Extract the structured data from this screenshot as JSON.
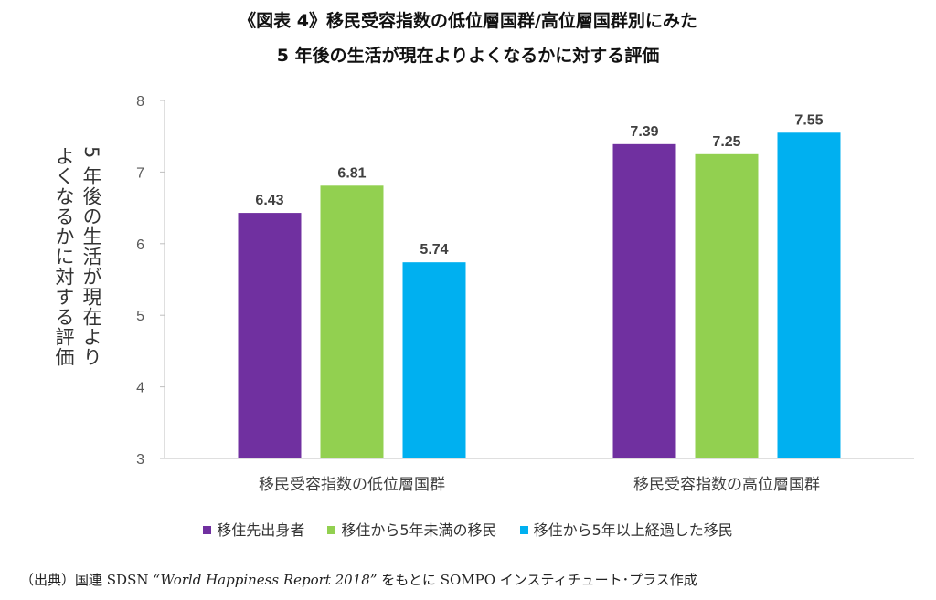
{
  "title_line1": "《図表 4》移民受容指数の低位層国群/高位層国群別にみた",
  "title_line2": "5 年後の生活が現在よりよくなるかに対する評価",
  "ylabel_col1": "5 年後の生活が現在より",
  "ylabel_col2": "よくなるかに対する評価",
  "legend": [
    {
      "label": "移住先出身者",
      "color": "#7030a0"
    },
    {
      "label": "移住から5年未満の移民",
      "color": "#92d050"
    },
    {
      "label": "移住から5年以上経過した移民",
      "color": "#00b0f0"
    }
  ],
  "source": {
    "prefix": "（出典）国連 SDSN ",
    "work": "“World Happiness Report 2018”",
    "suffix": " をもとに SOMPO インスティチュート･プラス作成"
  },
  "chart_data": {
    "type": "bar",
    "categories": [
      "移民受容指数の低位層国群",
      "移民受容指数の高位層国群"
    ],
    "series": [
      {
        "name": "移住先出身者",
        "values": [
          6.43,
          7.39
        ],
        "color": "#7030a0"
      },
      {
        "name": "移住から5年未満の移民",
        "values": [
          6.81,
          7.25
        ],
        "color": "#92d050"
      },
      {
        "name": "移住から5年以上経過した移民",
        "values": [
          5.74,
          7.55
        ],
        "color": "#00b0f0"
      }
    ],
    "ylim": [
      3,
      8
    ],
    "yticks": [
      3,
      4,
      5,
      6,
      7,
      8
    ],
    "ylabel": "5 年後の生活が現在よりよくなるかに対する評価",
    "data_labels": true,
    "grid": false,
    "legend_position": "bottom"
  }
}
